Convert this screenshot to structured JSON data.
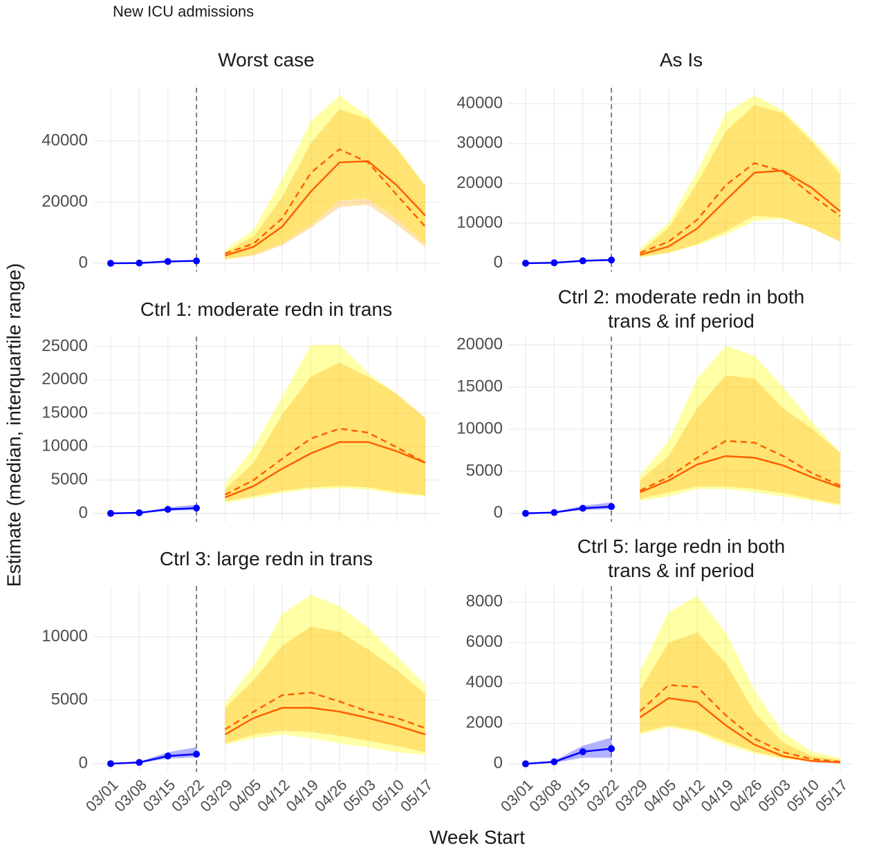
{
  "chart_data": {
    "type": "line",
    "title": "New ICU admissions",
    "x_label": "Week Start",
    "y_label": "Estimate (median, interquartile range)",
    "x": [
      "03/01",
      "03/08",
      "03/15",
      "03/22",
      "03/29",
      "04/05",
      "04/12",
      "04/19",
      "04/26",
      "05/03",
      "05/10",
      "05/17"
    ],
    "vline": "03/22",
    "grid": true,
    "panels": [
      {
        "title": "Worst case",
        "ylim": [
          -2700,
          57400
        ],
        "yticks": [
          0,
          20000,
          40000
        ],
        "bands": [
          {
            "color": "#0000ff4d",
            "lower": [
              0,
              80,
              450,
              600,
              null,
              null,
              null,
              null,
              null,
              null,
              null,
              null
            ],
            "upper": [
              0,
              130,
              800,
              1100,
              null,
              null,
              null,
              null,
              null,
              null,
              null,
              null
            ]
          },
          {
            "color": "#ffff0059",
            "lower": [
              null,
              null,
              null,
              null,
              1100,
              2900,
              6500,
              12600,
              20600,
              21200,
              14700,
              6100
            ],
            "upper": [
              null,
              null,
              null,
              null,
              4300,
              11000,
              27800,
              46500,
              54900,
              48100,
              38000,
              25100
            ]
          },
          {
            "color": "#ffa5004d",
            "lower": [
              null,
              null,
              null,
              null,
              1400,
              2500,
              5900,
              11500,
              18300,
              19200,
              12700,
              5200
            ],
            "upper": [
              null,
              null,
              null,
              null,
              3600,
              8800,
              21700,
              39300,
              50400,
              47200,
              37500,
              25500
            ]
          }
        ],
        "series": [
          {
            "color": "#0000ff",
            "markers": true,
            "values": [
              0,
              100,
              600,
              800,
              null,
              null,
              null,
              null,
              null,
              null,
              null,
              null
            ]
          },
          {
            "color": "#ff5f00",
            "values": [
              null,
              null,
              null,
              null,
              2500,
              5400,
              12000,
              23500,
              33000,
              33400,
              25500,
              15600
            ]
          },
          {
            "color": "#ff5f00",
            "dashed": true,
            "values": [
              null,
              null,
              null,
              null,
              3200,
              6500,
              14700,
              29600,
              37300,
              33000,
              22400,
              12000
            ]
          }
        ]
      },
      {
        "title": "As Is",
        "ylim": [
          -2100,
          44000
        ],
        "yticks": [
          0,
          10000,
          20000,
          30000,
          40000
        ],
        "bands": [
          {
            "color": "#0000ff4d",
            "lower": [
              0,
              80,
              450,
              600,
              null,
              null,
              null,
              null,
              null,
              null,
              null,
              null
            ],
            "upper": [
              0,
              130,
              800,
              1100,
              null,
              null,
              null,
              null,
              null,
              null,
              null,
              null
            ]
          },
          {
            "color": "#ffff0059",
            "lower": [
              null,
              null,
              null,
              null,
              1400,
              2600,
              4500,
              7100,
              10600,
              11100,
              8800,
              5400
            ],
            "upper": [
              null,
              null,
              null,
              null,
              3600,
              10200,
              23000,
              37700,
              42100,
              38300,
              31300,
              23500
            ]
          },
          {
            "color": "#ffa5004d",
            "lower": [
              null,
              null,
              null,
              null,
              1600,
              2600,
              4800,
              8000,
              11900,
              11400,
              8800,
              5400
            ],
            "upper": [
              null,
              null,
              null,
              null,
              2900,
              8800,
              20100,
              33100,
              39700,
              37700,
              30500,
              22300
            ]
          }
        ],
        "series": [
          {
            "color": "#0000ff",
            "markers": true,
            "values": [
              0,
              100,
              600,
              800,
              null,
              null,
              null,
              null,
              null,
              null,
              null,
              null
            ]
          },
          {
            "color": "#ff5f00",
            "values": [
              null,
              null,
              null,
              null,
              2100,
              4200,
              8700,
              15800,
              22700,
              23200,
              18900,
              13000
            ]
          },
          {
            "color": "#ff5f00",
            "dashed": true,
            "values": [
              null,
              null,
              null,
              null,
              2600,
              5400,
              10900,
              19600,
              25100,
              23000,
              17100,
              11800
            ]
          }
        ]
      },
      {
        "title": "Ctrl 1: moderate redn in trans",
        "ylim": [
          -1250,
          26500
        ],
        "yticks": [
          0,
          5000,
          10000,
          15000,
          20000,
          25000
        ],
        "bands": [
          {
            "color": "#0000ff4d",
            "lower": [
              0,
              60,
              400,
              500,
              null,
              null,
              null,
              null,
              null,
              null,
              null,
              null
            ],
            "upper": [
              0,
              150,
              900,
              1300,
              null,
              null,
              null,
              null,
              null,
              null,
              null,
              null
            ]
          },
          {
            "color": "#ffff0059",
            "lower": [
              null,
              null,
              null,
              null,
              1600,
              2300,
              3100,
              3600,
              3800,
              3600,
              2900,
              2600
            ],
            "upper": [
              null,
              null,
              null,
              null,
              4500,
              9900,
              17500,
              25200,
              25300,
              21000,
              17900,
              14300
            ]
          },
          {
            "color": "#ffa5004d",
            "lower": [
              null,
              null,
              null,
              null,
              1800,
              2600,
              3400,
              3900,
              4100,
              3900,
              3200,
              2700
            ],
            "upper": [
              null,
              null,
              null,
              null,
              3600,
              7600,
              14800,
              20500,
              22600,
              20500,
              17900,
              14300
            ]
          }
        ],
        "series": [
          {
            "color": "#0000ff",
            "markers": true,
            "values": [
              0,
              100,
              600,
              800,
              null,
              null,
              null,
              null,
              null,
              null,
              null,
              null
            ]
          },
          {
            "color": "#ff5f00",
            "values": [
              null,
              null,
              null,
              null,
              2400,
              4100,
              6700,
              9000,
              10700,
              10700,
              9300,
              7600
            ]
          },
          {
            "color": "#ff5f00",
            "dashed": true,
            "values": [
              null,
              null,
              null,
              null,
              2800,
              5000,
              8200,
              11200,
              12700,
              12100,
              9900,
              7600
            ]
          }
        ]
      },
      {
        "title": "Ctrl 2: moderate redn in both\ntrans & inf period",
        "ylim": [
          -1000,
          21000
        ],
        "yticks": [
          0,
          5000,
          10000,
          15000,
          20000
        ],
        "bands": [
          {
            "color": "#0000ff4d",
            "lower": [
              0,
              60,
              400,
              500,
              null,
              null,
              null,
              null,
              null,
              null,
              null,
              null
            ],
            "upper": [
              0,
              150,
              900,
              1300,
              null,
              null,
              null,
              null,
              null,
              null,
              null,
              null
            ]
          },
          {
            "color": "#ffff0059",
            "lower": [
              null,
              null,
              null,
              null,
              1500,
              2000,
              2900,
              2900,
              2500,
              2000,
              1500,
              900
            ],
            "upper": [
              null,
              null,
              null,
              null,
              4500,
              8600,
              16000,
              19900,
              18700,
              15000,
              10900,
              7200
            ]
          },
          {
            "color": "#ffa5004d",
            "lower": [
              null,
              null,
              null,
              null,
              1700,
              2500,
              3200,
              3200,
              2900,
              2400,
              1700,
              1100
            ],
            "upper": [
              null,
              null,
              null,
              null,
              3900,
              6800,
              12500,
              16400,
              16000,
              12500,
              10100,
              7200
            ]
          }
        ],
        "series": [
          {
            "color": "#0000ff",
            "markers": true,
            "values": [
              0,
              100,
              600,
              800,
              null,
              null,
              null,
              null,
              null,
              null,
              null,
              null
            ]
          },
          {
            "color": "#ff5f00",
            "values": [
              null,
              null,
              null,
              null,
              2500,
              3900,
              5800,
              6800,
              6600,
              5700,
              4300,
              3100
            ]
          },
          {
            "color": "#ff5f00",
            "dashed": true,
            "values": [
              null,
              null,
              null,
              null,
              2700,
              4300,
              6600,
              8600,
              8400,
              6800,
              4800,
              3300
            ]
          }
        ]
      },
      {
        "title": "Ctrl 3: large redn in trans",
        "ylim": [
          -650,
          14000
        ],
        "yticks": [
          0,
          5000,
          10000
        ],
        "bands": [
          {
            "color": "#0000ff4d",
            "lower": [
              0,
              50,
              400,
              500,
              null,
              null,
              null,
              null,
              null,
              null,
              null,
              null
            ],
            "upper": [
              0,
              150,
              900,
              1300,
              null,
              null,
              null,
              null,
              null,
              null,
              null,
              null
            ]
          },
          {
            "color": "#ffff0059",
            "lower": [
              null,
              null,
              null,
              null,
              1500,
              2000,
              2300,
              2000,
              1600,
              1300,
              900,
              700
            ],
            "upper": [
              null,
              null,
              null,
              null,
              4800,
              7700,
              11800,
              13300,
              12400,
              10700,
              8500,
              6200
            ]
          },
          {
            "color": "#ffa5004d",
            "lower": [
              null,
              null,
              null,
              null,
              1600,
              2300,
              2600,
              2500,
              2200,
              1800,
              1400,
              900
            ],
            "upper": [
              null,
              null,
              null,
              null,
              4400,
              6600,
              9300,
              10800,
              10400,
              9000,
              7400,
              5500
            ]
          }
        ],
        "series": [
          {
            "color": "#0000ff",
            "markers": true,
            "values": [
              0,
              100,
              600,
              750,
              null,
              null,
              null,
              null,
              null,
              null,
              null,
              null
            ]
          },
          {
            "color": "#ff5f00",
            "values": [
              null,
              null,
              null,
              null,
              2300,
              3600,
              4400,
              4400,
              4100,
              3600,
              3000,
              2300
            ]
          },
          {
            "color": "#ff5f00",
            "dashed": true,
            "values": [
              null,
              null,
              null,
              null,
              2700,
              4100,
              5400,
              5600,
              4900,
              4100,
              3600,
              2800
            ]
          }
        ]
      },
      {
        "title": "Ctrl 5: large redn in both\ntrans & inf period",
        "ylim": [
          -400,
          8800
        ],
        "yticks": [
          0,
          2000,
          4000,
          6000,
          8000
        ],
        "bands": [
          {
            "color": "#0000ff4d",
            "lower": [
              0,
              50,
              300,
              300,
              null,
              null,
              null,
              null,
              null,
              null,
              null,
              null
            ],
            "upper": [
              0,
              150,
              900,
              1300,
              null,
              null,
              null,
              null,
              null,
              null,
              null,
              null
            ]
          },
          {
            "color": "#ffff0059",
            "lower": [
              null,
              null,
              null,
              null,
              1450,
              1800,
              1550,
              950,
              500,
              240,
              100,
              30
            ],
            "upper": [
              null,
              null,
              null,
              null,
              4600,
              7500,
              8300,
              6500,
              3650,
              1550,
              600,
              300
            ]
          },
          {
            "color": "#ffa5004d",
            "lower": [
              null,
              null,
              null,
              null,
              1550,
              1900,
              1650,
              1100,
              600,
              300,
              140,
              70
            ],
            "upper": [
              null,
              null,
              null,
              null,
              3650,
              6000,
              6500,
              5000,
              2550,
              1050,
              400,
              200
            ]
          }
        ],
        "series": [
          {
            "color": "#0000ff",
            "markers": true,
            "values": [
              0,
              100,
              600,
              750,
              null,
              null,
              null,
              null,
              null,
              null,
              null,
              null
            ]
          },
          {
            "color": "#ff5f00",
            "values": [
              null,
              null,
              null,
              null,
              2300,
              3250,
              3050,
              1900,
              950,
              380,
              140,
              70
            ]
          },
          {
            "color": "#ff5f00",
            "dashed": true,
            "values": [
              null,
              null,
              null,
              null,
              2600,
              3900,
              3800,
              2400,
              1250,
              580,
              240,
              100
            ]
          }
        ]
      }
    ]
  }
}
